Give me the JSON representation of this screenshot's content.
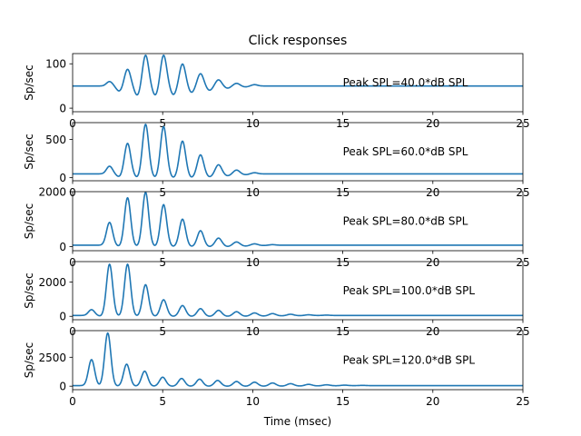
{
  "chart_data": {
    "type": "line",
    "title": "Click responses",
    "xlabel": "Time (msec)",
    "line_color": "#1f77b4",
    "xlim": [
      0,
      25
    ],
    "xticks": [
      "0",
      "5",
      "10",
      "15",
      "20",
      "25"
    ],
    "panels": [
      {
        "ylabel": "Sp/sec",
        "annotation": "Peak SPL=40.0*dB SPL",
        "ylim": [
          -8,
          123
        ],
        "yticks": [
          {
            "v": 0,
            "label": "0"
          },
          {
            "v": 100,
            "label": "100"
          }
        ],
        "baseline": 50,
        "peaks": [
          {
            "t": 2.05,
            "a": 10
          },
          {
            "t": 3.05,
            "a": 38
          },
          {
            "t": 4.05,
            "a": 70
          },
          {
            "t": 5.05,
            "a": 70
          },
          {
            "t": 6.1,
            "a": 50
          },
          {
            "t": 7.1,
            "a": 28
          },
          {
            "t": 8.1,
            "a": 14
          },
          {
            "t": 9.1,
            "a": 6
          },
          {
            "t": 10.1,
            "a": 3
          }
        ],
        "troughs": [
          {
            "t": 2.6,
            "a": 12
          },
          {
            "t": 3.6,
            "a": 22
          },
          {
            "t": 4.6,
            "a": 22
          },
          {
            "t": 5.6,
            "a": 20
          },
          {
            "t": 6.6,
            "a": 15
          },
          {
            "t": 7.6,
            "a": 10
          },
          {
            "t": 8.6,
            "a": 5
          },
          {
            "t": 9.6,
            "a": 2
          }
        ]
      },
      {
        "ylabel": "Sp/sec",
        "annotation": "Peak SPL=60.0*dB SPL",
        "ylim": [
          -40,
          720
        ],
        "yticks": [
          {
            "v": 0,
            "label": "0"
          },
          {
            "v": 500,
            "label": "500"
          }
        ],
        "baseline": 50,
        "peaks": [
          {
            "t": 2.05,
            "a": 100
          },
          {
            "t": 3.05,
            "a": 400
          },
          {
            "t": 4.05,
            "a": 650
          },
          {
            "t": 5.05,
            "a": 620
          },
          {
            "t": 6.1,
            "a": 430
          },
          {
            "t": 7.1,
            "a": 250
          },
          {
            "t": 8.1,
            "a": 120
          },
          {
            "t": 9.1,
            "a": 50
          },
          {
            "t": 10.1,
            "a": 15
          }
        ],
        "troughs": [
          {
            "t": 2.6,
            "a": 40
          },
          {
            "t": 3.6,
            "a": 50
          },
          {
            "t": 4.6,
            "a": 50
          },
          {
            "t": 5.6,
            "a": 50
          },
          {
            "t": 6.6,
            "a": 48
          },
          {
            "t": 7.6,
            "a": 40
          },
          {
            "t": 8.6,
            "a": 25
          },
          {
            "t": 9.6,
            "a": 10
          }
        ]
      },
      {
        "ylabel": "Sp/sec",
        "annotation": "Peak SPL=80.0*dB SPL",
        "ylim": [
          -150,
          2000
        ],
        "yticks": [
          {
            "v": 0,
            "label": "0"
          },
          {
            "v": 2000,
            "label": "2000"
          }
        ],
        "baseline": 50,
        "peaks": [
          {
            "t": 2.05,
            "a": 830
          },
          {
            "t": 3.05,
            "a": 1730
          },
          {
            "t": 4.05,
            "a": 1930
          },
          {
            "t": 5.05,
            "a": 1480
          },
          {
            "t": 6.1,
            "a": 950
          },
          {
            "t": 7.1,
            "a": 530
          },
          {
            "t": 8.1,
            "a": 260
          },
          {
            "t": 9.1,
            "a": 120
          },
          {
            "t": 10.1,
            "a": 50
          },
          {
            "t": 11.1,
            "a": 20
          }
        ],
        "troughs": [
          {
            "t": 2.6,
            "a": 50
          },
          {
            "t": 3.6,
            "a": 50
          },
          {
            "t": 4.6,
            "a": 50
          },
          {
            "t": 5.6,
            "a": 50
          },
          {
            "t": 6.6,
            "a": 50
          },
          {
            "t": 7.6,
            "a": 50
          },
          {
            "t": 8.6,
            "a": 45
          },
          {
            "t": 9.6,
            "a": 30
          },
          {
            "t": 10.6,
            "a": 10
          }
        ]
      },
      {
        "ylabel": "Sp/sec",
        "annotation": "Peak SPL=100.0*dB SPL",
        "ylim": [
          -200,
          3200
        ],
        "yticks": [
          {
            "v": 0,
            "label": "0"
          },
          {
            "v": 2000,
            "label": "2000"
          }
        ],
        "baseline": 50,
        "peaks": [
          {
            "t": 1.05,
            "a": 340
          },
          {
            "t": 2.05,
            "a": 3000
          },
          {
            "t": 3.05,
            "a": 3000
          },
          {
            "t": 4.05,
            "a": 1800
          },
          {
            "t": 5.05,
            "a": 920
          },
          {
            "t": 6.1,
            "a": 580
          },
          {
            "t": 7.1,
            "a": 400
          },
          {
            "t": 8.1,
            "a": 300
          },
          {
            "t": 9.1,
            "a": 220
          },
          {
            "t": 10.1,
            "a": 150
          },
          {
            "t": 11.1,
            "a": 110
          },
          {
            "t": 12.1,
            "a": 70
          },
          {
            "t": 13.1,
            "a": 40
          },
          {
            "t": 14.1,
            "a": 20
          }
        ],
        "troughs": [
          {
            "t": 1.6,
            "a": 50
          },
          {
            "t": 2.6,
            "a": 50
          },
          {
            "t": 3.6,
            "a": 50
          },
          {
            "t": 4.6,
            "a": 50
          },
          {
            "t": 5.6,
            "a": 50
          },
          {
            "t": 6.6,
            "a": 50
          },
          {
            "t": 7.6,
            "a": 50
          },
          {
            "t": 8.6,
            "a": 45
          },
          {
            "t": 9.6,
            "a": 40
          },
          {
            "t": 10.6,
            "a": 30
          },
          {
            "t": 11.6,
            "a": 20
          },
          {
            "t": 12.6,
            "a": 10
          }
        ]
      },
      {
        "ylabel": "Sp/sec",
        "annotation": "Peak SPL=120.0*dB SPL",
        "ylim": [
          -300,
          4800
        ],
        "yticks": [
          {
            "v": 0,
            "label": "0"
          },
          {
            "v": 2500,
            "label": "2500"
          }
        ],
        "baseline": 50,
        "peaks": [
          {
            "t": 1.05,
            "a": 2250
          },
          {
            "t": 1.95,
            "a": 4550
          },
          {
            "t": 3.0,
            "a": 1850
          },
          {
            "t": 4.0,
            "a": 1250
          },
          {
            "t": 5.0,
            "a": 730
          },
          {
            "t": 6.05,
            "a": 620
          },
          {
            "t": 7.05,
            "a": 560
          },
          {
            "t": 8.05,
            "a": 450
          },
          {
            "t": 9.1,
            "a": 360
          },
          {
            "t": 10.1,
            "a": 300
          },
          {
            "t": 11.1,
            "a": 230
          },
          {
            "t": 12.1,
            "a": 170
          },
          {
            "t": 13.1,
            "a": 110
          },
          {
            "t": 14.1,
            "a": 70
          },
          {
            "t": 15.1,
            "a": 40
          },
          {
            "t": 16.1,
            "a": 20
          }
        ],
        "troughs": [
          {
            "t": 1.5,
            "a": 50
          },
          {
            "t": 2.5,
            "a": 50
          },
          {
            "t": 3.5,
            "a": 50
          },
          {
            "t": 4.5,
            "a": 50
          },
          {
            "t": 5.55,
            "a": 50
          },
          {
            "t": 6.55,
            "a": 50
          },
          {
            "t": 7.55,
            "a": 50
          },
          {
            "t": 8.6,
            "a": 50
          },
          {
            "t": 9.6,
            "a": 50
          },
          {
            "t": 10.6,
            "a": 45
          },
          {
            "t": 11.6,
            "a": 40
          },
          {
            "t": 12.6,
            "a": 30
          },
          {
            "t": 13.6,
            "a": 20
          },
          {
            "t": 14.6,
            "a": 10
          }
        ]
      }
    ]
  }
}
